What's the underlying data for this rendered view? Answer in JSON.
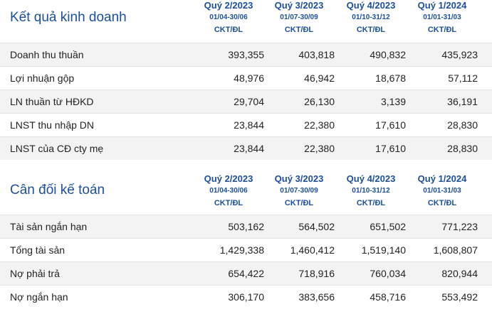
{
  "income": {
    "title": "Kết quả kinh doanh",
    "columns": [
      {
        "quarter": "Quý 2/2023",
        "dates": "01/04-30/06",
        "audit": "CKT/ĐL"
      },
      {
        "quarter": "Quý 3/2023",
        "dates": "01/07-30/09",
        "audit": "CKT/ĐL"
      },
      {
        "quarter": "Quý 4/2023",
        "dates": "01/10-31/12",
        "audit": "CKT/ĐL"
      },
      {
        "quarter": "Quý 1/2024",
        "dates": "01/01-31/03",
        "audit": "CKT/ĐL"
      }
    ],
    "rows": [
      {
        "label": "Doanh thu thuần",
        "values": [
          "393,355",
          "403,818",
          "490,832",
          "435,923"
        ]
      },
      {
        "label": "Lợi nhuận gộp",
        "values": [
          "48,976",
          "46,942",
          "18,678",
          "57,112"
        ]
      },
      {
        "label": "LN thuần từ HĐKD",
        "values": [
          "29,704",
          "26,130",
          "3,139",
          "36,191"
        ]
      },
      {
        "label": "LNST thu nhập DN",
        "values": [
          "23,844",
          "22,380",
          "17,610",
          "28,830"
        ]
      },
      {
        "label": "LNST của CĐ cty mẹ",
        "values": [
          "23,844",
          "22,380",
          "17,610",
          "28,830"
        ]
      }
    ]
  },
  "balance": {
    "title": "Cân đối kế toán",
    "columns": [
      {
        "quarter": "Quý 2/2023",
        "dates": "01/04-30/06",
        "audit": "CKT/ĐL"
      },
      {
        "quarter": "Quý 3/2023",
        "dates": "01/07-30/09",
        "audit": "CKT/ĐL"
      },
      {
        "quarter": "Quý 4/2023",
        "dates": "01/10-31/12",
        "audit": "CKT/ĐL"
      },
      {
        "quarter": "Quý 1/2024",
        "dates": "01/01-31/03",
        "audit": "CKT/ĐL"
      }
    ],
    "rows": [
      {
        "label": "Tài sản ngắn hạn",
        "values": [
          "503,162",
          "564,502",
          "651,502",
          "771,223"
        ]
      },
      {
        "label": "Tổng tài sản",
        "values": [
          "1,429,338",
          "1,460,412",
          "1,519,140",
          "1,608,807"
        ]
      },
      {
        "label": "Nợ phải trả",
        "values": [
          "654,422",
          "718,916",
          "760,034",
          "820,944"
        ]
      },
      {
        "label": "Nợ ngắn hạn",
        "values": [
          "306,170",
          "383,656",
          "458,716",
          "553,492"
        ]
      }
    ]
  }
}
